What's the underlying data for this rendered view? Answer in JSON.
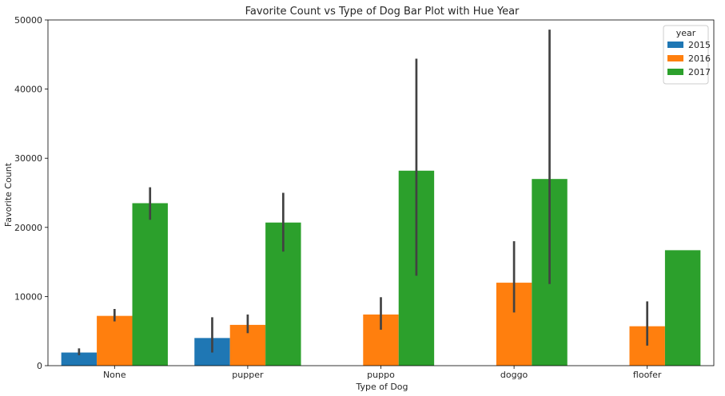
{
  "chart_data": {
    "type": "bar",
    "title": "Favorite Count vs Type of Dog Bar Plot with Hue Year",
    "xlabel": "Type of Dog",
    "ylabel": "Favorite Count",
    "categories": [
      "None",
      "pupper",
      "puppo",
      "doggo",
      "floofer"
    ],
    "ylim": [
      0,
      50000
    ],
    "yticks": [
      0,
      10000,
      20000,
      30000,
      40000,
      50000
    ],
    "legend": {
      "title": "year",
      "placement": "top-right"
    },
    "series": [
      {
        "name": "2015",
        "color": "#1f77b4",
        "values": [
          1900,
          4000,
          null,
          null,
          null
        ],
        "ci": [
          [
            1500,
            2500
          ],
          [
            1900,
            7000
          ],
          null,
          null,
          null
        ]
      },
      {
        "name": "2016",
        "color": "#ff7f0e",
        "values": [
          7200,
          5900,
          7400,
          12000,
          5700
        ],
        "ci": [
          [
            6400,
            8200
          ],
          [
            4700,
            7400
          ],
          [
            5200,
            9900
          ],
          [
            7700,
            18000
          ],
          [
            2900,
            9300
          ]
        ]
      },
      {
        "name": "2017",
        "color": "#2ca02c",
        "values": [
          23500,
          20700,
          28200,
          27000,
          16700
        ],
        "ci": [
          [
            21100,
            25800
          ],
          [
            16500,
            25000
          ],
          [
            13000,
            44400
          ],
          [
            11800,
            48600
          ],
          null
        ]
      }
    ],
    "grid": false
  }
}
